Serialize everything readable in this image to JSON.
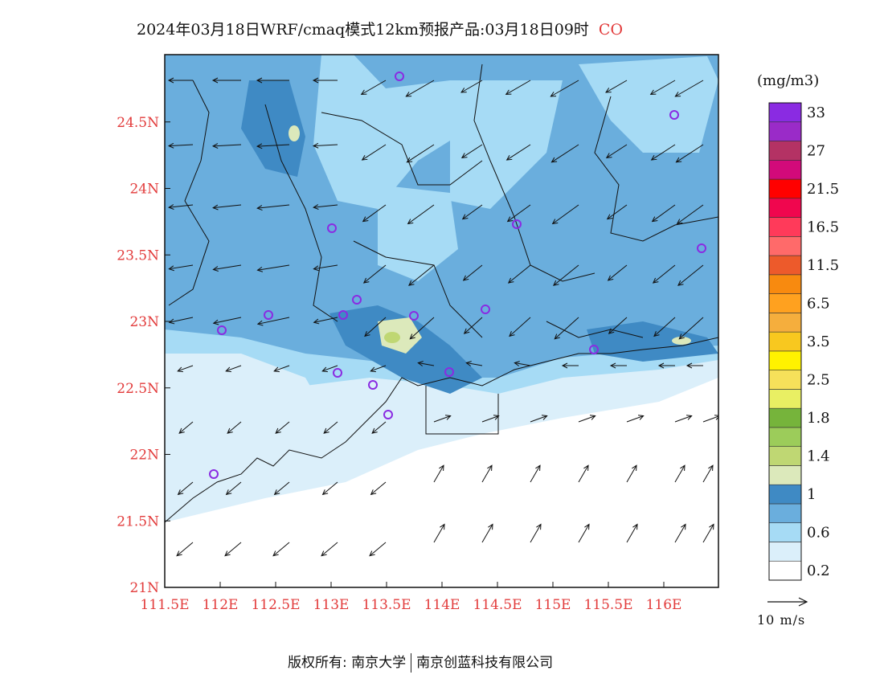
{
  "title": {
    "main": "2024年03月18日WRF/cmaq模式12km预报产品:03月18日09时",
    "species": "CO"
  },
  "axes": {
    "lat_labels": [
      "24.5N",
      "24N",
      "23.5N",
      "23N",
      "22.5N",
      "22N",
      "21.5N",
      "21N"
    ],
    "lon_labels": [
      "111.5E",
      "112E",
      "112.5E",
      "113E",
      "113.5E",
      "114E",
      "114.5E",
      "115E",
      "115.5E",
      "116E"
    ],
    "label_color": "#e23b3b"
  },
  "legend": {
    "unit": "(mg/m3)",
    "bins": [
      {
        "color": "#ffffff",
        "label": "0.2"
      },
      {
        "color": "#dbeffa",
        "label": ""
      },
      {
        "color": "#a6dbf5",
        "label": "0.6"
      },
      {
        "color": "#6aaedd",
        "label": ""
      },
      {
        "color": "#3f8ac4",
        "label": "1"
      },
      {
        "color": "#dce9bb",
        "label": ""
      },
      {
        "color": "#bfd773",
        "label": "1.4"
      },
      {
        "color": "#9ccc5a",
        "label": ""
      },
      {
        "color": "#76b43b",
        "label": "1.8"
      },
      {
        "color": "#e9ef63",
        "label": ""
      },
      {
        "color": "#f6e15a",
        "label": "2.5"
      },
      {
        "color": "#fff200",
        "label": ""
      },
      {
        "color": "#f8c81f",
        "label": "3.5"
      },
      {
        "color": "#f5ae3d",
        "label": ""
      },
      {
        "color": "#ffa11f",
        "label": "6.5"
      },
      {
        "color": "#f88a0f",
        "label": ""
      },
      {
        "color": "#ed5a2b",
        "label": "11.5"
      },
      {
        "color": "#ff6a6a",
        "label": ""
      },
      {
        "color": "#ff3a5a",
        "label": "16.5"
      },
      {
        "color": "#f0064e",
        "label": ""
      },
      {
        "color": "#ff0000",
        "label": "21.5"
      },
      {
        "color": "#d20a7a",
        "label": ""
      },
      {
        "color": "#b43264",
        "label": "27"
      },
      {
        "color": "#9a2bc8",
        "label": ""
      },
      {
        "color": "#8a2be2",
        "label": "33"
      }
    ]
  },
  "reference_vector": {
    "label": "10 m/s"
  },
  "footer": {
    "left": "版权所有: 南京大学",
    "right": "南京创蓝科技有限公司"
  },
  "stations_color": "#8a2be2"
}
